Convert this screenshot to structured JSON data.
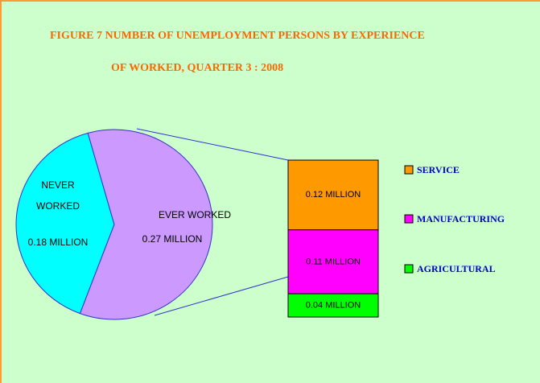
{
  "chart_data": {
    "type": "pie",
    "title": [
      "FIGURE 7 NUMBER OF UNEMPLOYMENT PERSONS BY EXPERIENCE",
      "OF WORKED, QUARTER 3 : 2008"
    ],
    "categories": [
      "NEVER WORKED",
      "EVER WORKED"
    ],
    "values": [
      0.18,
      0.27
    ],
    "value_labels": [
      "0.18 MILLION",
      "0.27 MILLION"
    ],
    "colors": [
      "#00ffff",
      "#cc99ff"
    ],
    "breakdown": {
      "categories": [
        "SERVICE",
        "MANUFACTURING",
        "AGRICULTURAL"
      ],
      "values": [
        0.12,
        0.11,
        0.04
      ],
      "value_labels": [
        "0.12 MILLION",
        "0.11 MILLION",
        "0.04 MILLION"
      ],
      "colors": [
        "#ff9900",
        "#ff00ff",
        "#00ff00"
      ]
    }
  }
}
